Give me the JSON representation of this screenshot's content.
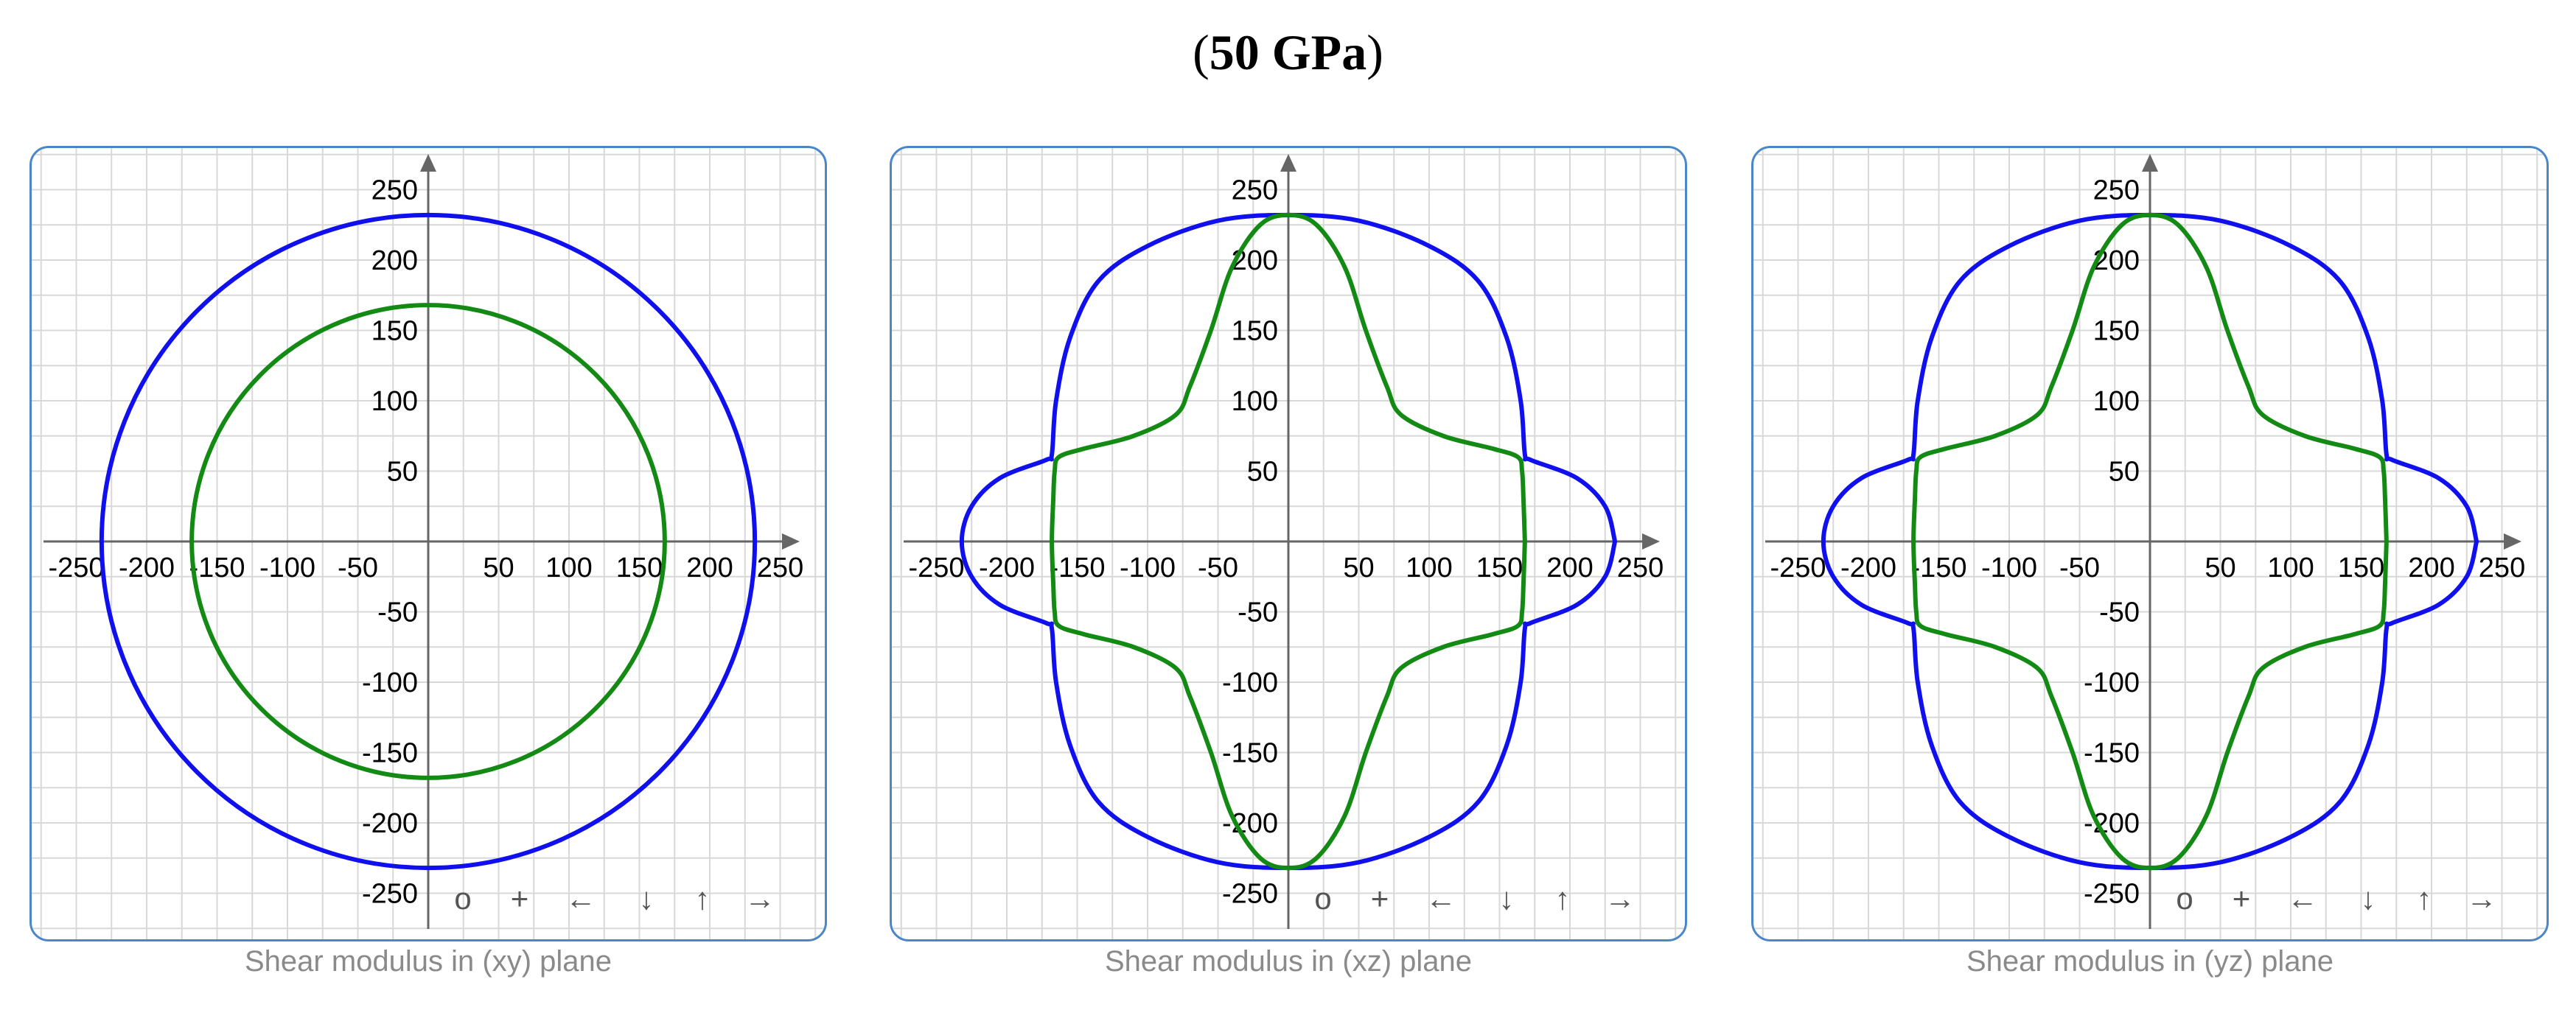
{
  "title": {
    "open": "(",
    "value": "50 GPa",
    "close": ")"
  },
  "colors": {
    "series_outer": "#1010ee",
    "series_inner": "#138a13",
    "panel_border": "#4a86c8",
    "grid": "#d8d8d8",
    "axis": "#666666",
    "caption": "#8a8a8a"
  },
  "nav_controls": [
    {
      "name": "reset",
      "label": "o"
    },
    {
      "name": "zoom-in",
      "label": "+"
    },
    {
      "name": "pan-left",
      "label": "←"
    },
    {
      "name": "pan-down",
      "label": "↓"
    },
    {
      "name": "pan-up",
      "label": "↑"
    },
    {
      "name": "pan-right",
      "label": "→"
    }
  ],
  "panels": [
    {
      "id": "xy",
      "caption": "Shear modulus in (xy) plane"
    },
    {
      "id": "xz",
      "caption": "Shear modulus in (xz) plane"
    },
    {
      "id": "yz",
      "caption": "Shear modulus in (yz) plane"
    }
  ],
  "chart_data": [
    {
      "type": "line",
      "plot": "polar",
      "caption": "Shear modulus in (xy) plane",
      "xlim": [
        -250,
        250
      ],
      "ylim": [
        -250,
        250
      ],
      "x_ticks": [
        -250,
        -200,
        -150,
        -100,
        -50,
        50,
        100,
        150,
        200,
        250
      ],
      "y_ticks": [
        250,
        200,
        150,
        100,
        50,
        -50,
        -100,
        -150,
        -200,
        -250
      ],
      "grid": true,
      "series": [
        {
          "color": "#1010ee",
          "shape": "circle",
          "radius": 232
        },
        {
          "color": "#138a13",
          "shape": "circle",
          "radius": 168
        }
      ]
    },
    {
      "type": "line",
      "plot": "polar",
      "caption": "Shear modulus in (xz) plane",
      "xlim": [
        -250,
        250
      ],
      "ylim": [
        -250,
        250
      ],
      "x_ticks": [
        -250,
        -200,
        -150,
        -100,
        -50,
        50,
        100,
        150,
        200,
        250
      ],
      "y_ticks": [
        250,
        200,
        150,
        100,
        50,
        -50,
        -100,
        -150,
        -200,
        -250
      ],
      "grid": true,
      "series": [
        {
          "color": "#1010ee",
          "points": [
            [
              232,
              0
            ],
            [
              225,
              25
            ],
            [
              205,
              45
            ],
            [
              172,
              58
            ],
            [
              168,
              62
            ],
            [
              165,
              100
            ],
            [
              155,
              145
            ],
            [
              135,
              185
            ],
            [
              100,
              210
            ],
            [
              50,
              228
            ],
            [
              0,
              232
            ]
          ]
        },
        {
          "color": "#138a13",
          "points": [
            [
              168,
              0
            ],
            [
              167,
              30
            ],
            [
              166,
              50
            ],
            [
              163,
              60
            ],
            [
              145,
              66
            ],
            [
              110,
              75
            ],
            [
              80,
              90
            ],
            [
              70,
              110
            ],
            [
              55,
              150
            ],
            [
              40,
              195
            ],
            [
              20,
              225
            ],
            [
              0,
              232
            ]
          ]
        }
      ]
    },
    {
      "type": "line",
      "plot": "polar",
      "caption": "Shear modulus in (yz) plane",
      "xlim": [
        -250,
        250
      ],
      "ylim": [
        -250,
        250
      ],
      "x_ticks": [
        -250,
        -200,
        -150,
        -100,
        -50,
        50,
        100,
        150,
        200,
        250
      ],
      "y_ticks": [
        250,
        200,
        150,
        100,
        50,
        -50,
        -100,
        -150,
        -200,
        -250
      ],
      "grid": true,
      "series": [
        {
          "color": "#1010ee",
          "points": [
            [
              232,
              0
            ],
            [
              225,
              25
            ],
            [
              205,
              45
            ],
            [
              172,
              58
            ],
            [
              168,
              62
            ],
            [
              165,
              100
            ],
            [
              155,
              145
            ],
            [
              135,
              185
            ],
            [
              100,
              210
            ],
            [
              50,
              228
            ],
            [
              0,
              232
            ]
          ]
        },
        {
          "color": "#138a13",
          "points": [
            [
              168,
              0
            ],
            [
              167,
              30
            ],
            [
              166,
              50
            ],
            [
              163,
              60
            ],
            [
              145,
              66
            ],
            [
              110,
              75
            ],
            [
              80,
              90
            ],
            [
              70,
              110
            ],
            [
              55,
              150
            ],
            [
              40,
              195
            ],
            [
              20,
              225
            ],
            [
              0,
              232
            ]
          ]
        }
      ]
    }
  ]
}
